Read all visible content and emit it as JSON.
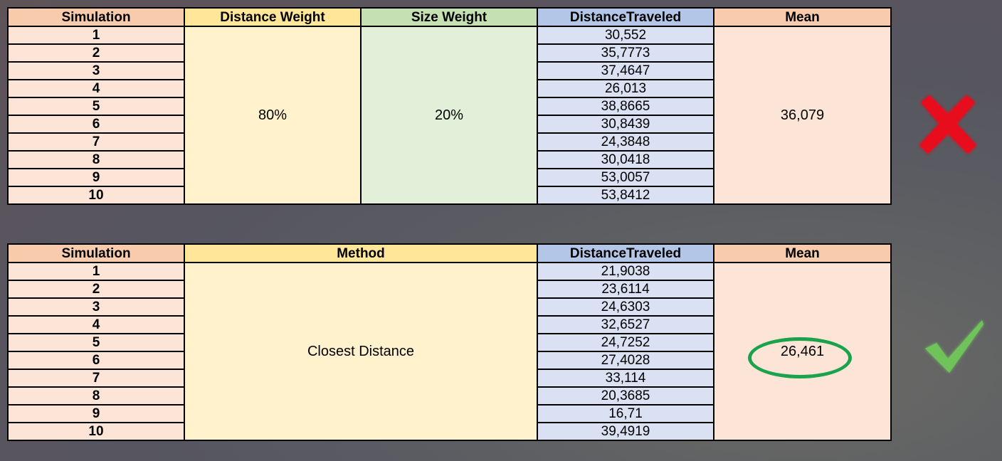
{
  "table1": {
    "headers": {
      "simulation": "Simulation",
      "distance_weight": "Distance Weight",
      "size_weight": "Size Weight",
      "distance_traveled": "DistanceTraveled",
      "mean": "Mean"
    },
    "simulations": [
      "1",
      "2",
      "3",
      "4",
      "5",
      "6",
      "7",
      "8",
      "9",
      "10"
    ],
    "distance_weight_value": "80%",
    "size_weight_value": "20%",
    "distances": [
      "30,552",
      "35,7773",
      "37,4647",
      "26,013",
      "38,8665",
      "30,8439",
      "24,3848",
      "30,0418",
      "53,0057",
      "53,8412"
    ],
    "mean_value": "36,079",
    "verdict_icon": "cross-icon",
    "verdict_color": "#e8101a"
  },
  "table2": {
    "headers": {
      "simulation": "Simulation",
      "method": "Method",
      "distance_traveled": "DistanceTraveled",
      "mean": "Mean"
    },
    "simulations": [
      "1",
      "2",
      "3",
      "4",
      "5",
      "6",
      "7",
      "8",
      "9",
      "10"
    ],
    "method_value": "Closest Distance",
    "distances": [
      "21,9038",
      "23,6114",
      "24,6303",
      "32,6527",
      "24,7252",
      "27,4028",
      "33,114",
      "20,3685",
      "16,71",
      "39,4919"
    ],
    "mean_value": "26,461",
    "verdict_icon": "checkmark-icon",
    "verdict_color": "#6fc25a",
    "highlight_color": "#1aa34a"
  }
}
